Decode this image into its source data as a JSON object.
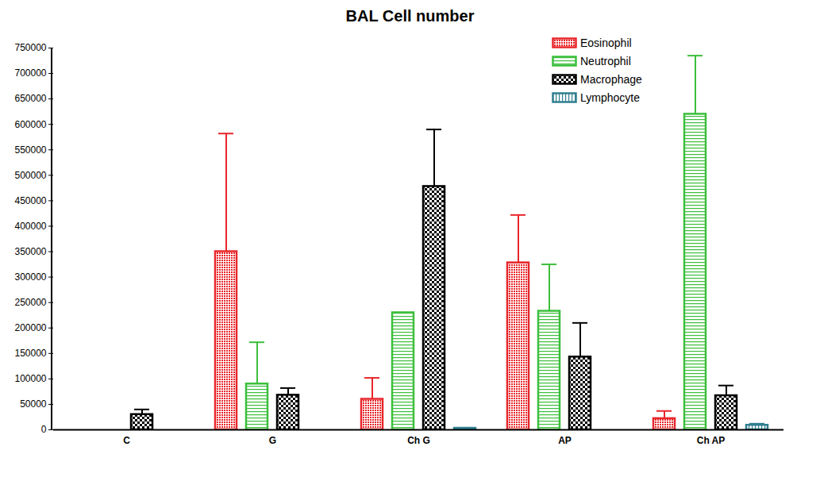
{
  "chart_data": {
    "type": "bar",
    "title": "BAL Cell number",
    "categories": [
      "C",
      "G",
      "Ch G",
      "AP",
      "Ch AP"
    ],
    "series": [
      {
        "name": "Eosinophil",
        "color": "#e8262b",
        "values": [
          null,
          350000,
          60000,
          328000,
          22000
        ],
        "errors": [
          null,
          232000,
          42000,
          94000,
          15000
        ]
      },
      {
        "name": "Neutrophil",
        "color": "#3cbf3c",
        "values": [
          null,
          90000,
          230000,
          233000,
          620000
        ],
        "errors": [
          null,
          82000,
          null,
          92000,
          115000
        ]
      },
      {
        "name": "Macrophage",
        "color": "#000000",
        "values": [
          30000,
          68000,
          478000,
          143000,
          67000
        ],
        "errors": [
          10000,
          14000,
          112000,
          67000,
          20000
        ]
      },
      {
        "name": "Lymphocyte",
        "color": "#2f7f8f",
        "values": [
          null,
          null,
          3000,
          null,
          9000
        ],
        "errors": [
          null,
          null,
          1000,
          null,
          3000
        ]
      }
    ],
    "ylim": [
      0,
      750000
    ],
    "yticks": [
      0,
      50000,
      100000,
      150000,
      200000,
      250000,
      300000,
      350000,
      400000,
      450000,
      500000,
      550000,
      600000,
      650000,
      700000,
      750000
    ],
    "legend": "top-right"
  }
}
